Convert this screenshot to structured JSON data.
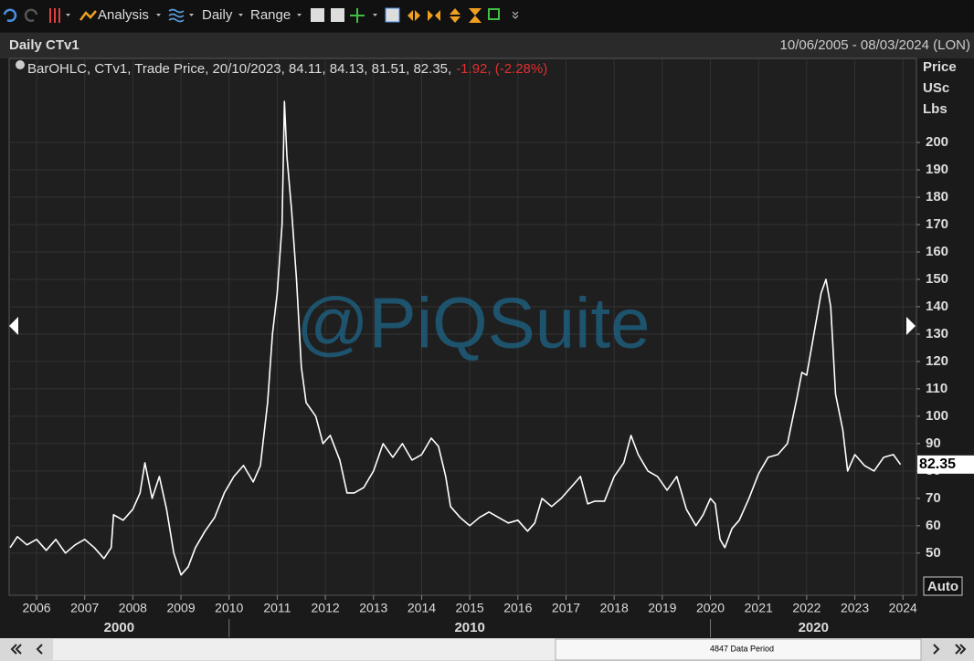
{
  "toolbar": {
    "analysis": "Analysis",
    "interval": "Daily",
    "range": "Range"
  },
  "scrollbar": {
    "label": "4847 Data Period"
  },
  "chart_data": {
    "type": "line",
    "title": "Daily CTv1",
    "date_range": "10/06/2005 - 08/03/2024 (LON)",
    "legend": "BarOHLC, CTv1, Trade Price, 20/10/2023, 84.11, 84.13, 81.51, 82.35,",
    "change": "-1.92, (-2.28%)",
    "y_label": [
      "Price",
      "USc",
      "Lbs"
    ],
    "watermark": "@PiQSuite",
    "last_value": 82.35,
    "scale_mode": "Auto",
    "color": "#ffffff",
    "grid": true,
    "x": [
      2005.45,
      2005.6,
      2005.8,
      2006.0,
      2006.2,
      2006.4,
      2006.6,
      2006.8,
      2007.0,
      2007.2,
      2007.4,
      2007.55,
      2007.6,
      2007.8,
      2008.0,
      2008.15,
      2008.25,
      2008.4,
      2008.55,
      2008.7,
      2008.85,
      2009.0,
      2009.15,
      2009.3,
      2009.5,
      2009.7,
      2009.9,
      2010.1,
      2010.3,
      2010.5,
      2010.65,
      2010.8,
      2010.9,
      2011.0,
      2011.1,
      2011.15,
      2011.2,
      2011.3,
      2011.4,
      2011.5,
      2011.6,
      2011.8,
      2011.95,
      2012.1,
      2012.3,
      2012.45,
      2012.6,
      2012.8,
      2013.0,
      2013.2,
      2013.4,
      2013.6,
      2013.8,
      2014.0,
      2014.2,
      2014.35,
      2014.5,
      2014.6,
      2014.8,
      2015.0,
      2015.2,
      2015.4,
      2015.6,
      2015.8,
      2016.0,
      2016.2,
      2016.35,
      2016.5,
      2016.7,
      2016.9,
      2017.1,
      2017.3,
      2017.45,
      2017.6,
      2017.8,
      2018.0,
      2018.2,
      2018.35,
      2018.5,
      2018.7,
      2018.9,
      2019.1,
      2019.3,
      2019.5,
      2019.7,
      2019.85,
      2020.0,
      2020.1,
      2020.2,
      2020.3,
      2020.45,
      2020.6,
      2020.8,
      2021.0,
      2021.2,
      2021.4,
      2021.6,
      2021.8,
      2021.9,
      2022.0,
      2022.15,
      2022.3,
      2022.4,
      2022.5,
      2022.6,
      2022.75,
      2022.85,
      2023.0,
      2023.2,
      2023.4,
      2023.6,
      2023.8,
      2023.95
    ],
    "values": [
      52,
      56,
      53,
      55,
      51,
      55,
      50,
      53,
      55,
      52,
      48,
      52,
      64,
      62,
      66,
      72,
      83,
      70,
      78,
      66,
      50,
      42,
      45,
      52,
      58,
      63,
      72,
      78,
      82,
      76,
      82,
      105,
      130,
      145,
      170,
      215,
      195,
      175,
      150,
      118,
      105,
      100,
      90,
      93,
      84,
      72,
      72,
      74,
      80,
      90,
      85,
      90,
      84,
      86,
      92,
      89,
      78,
      67,
      63,
      60,
      63,
      65,
      63,
      61,
      62,
      58,
      61,
      70,
      67,
      70,
      74,
      78,
      68,
      69,
      69,
      78,
      83,
      93,
      86,
      80,
      78,
      73,
      78,
      66,
      60,
      64,
      70,
      68,
      55,
      52,
      59,
      62,
      70,
      79,
      85,
      86,
      90,
      107,
      116,
      115,
      130,
      145,
      150,
      140,
      108,
      95,
      80,
      86,
      82,
      80,
      85,
      86,
      82.35
    ],
    "xlim": [
      2005.43,
      2024.28
    ],
    "xticks": [
      2006,
      2007,
      2008,
      2009,
      2010,
      2011,
      2012,
      2013,
      2014,
      2015,
      2016,
      2017,
      2018,
      2019,
      2020,
      2021,
      2022,
      2023,
      2024
    ],
    "decades": [
      2000,
      2010,
      2020
    ],
    "ylim": [
      34.6,
      230.7
    ],
    "yticks": [
      50,
      60,
      70,
      80,
      90,
      100,
      110,
      120,
      130,
      140,
      150,
      160,
      170,
      180,
      190,
      200
    ]
  }
}
